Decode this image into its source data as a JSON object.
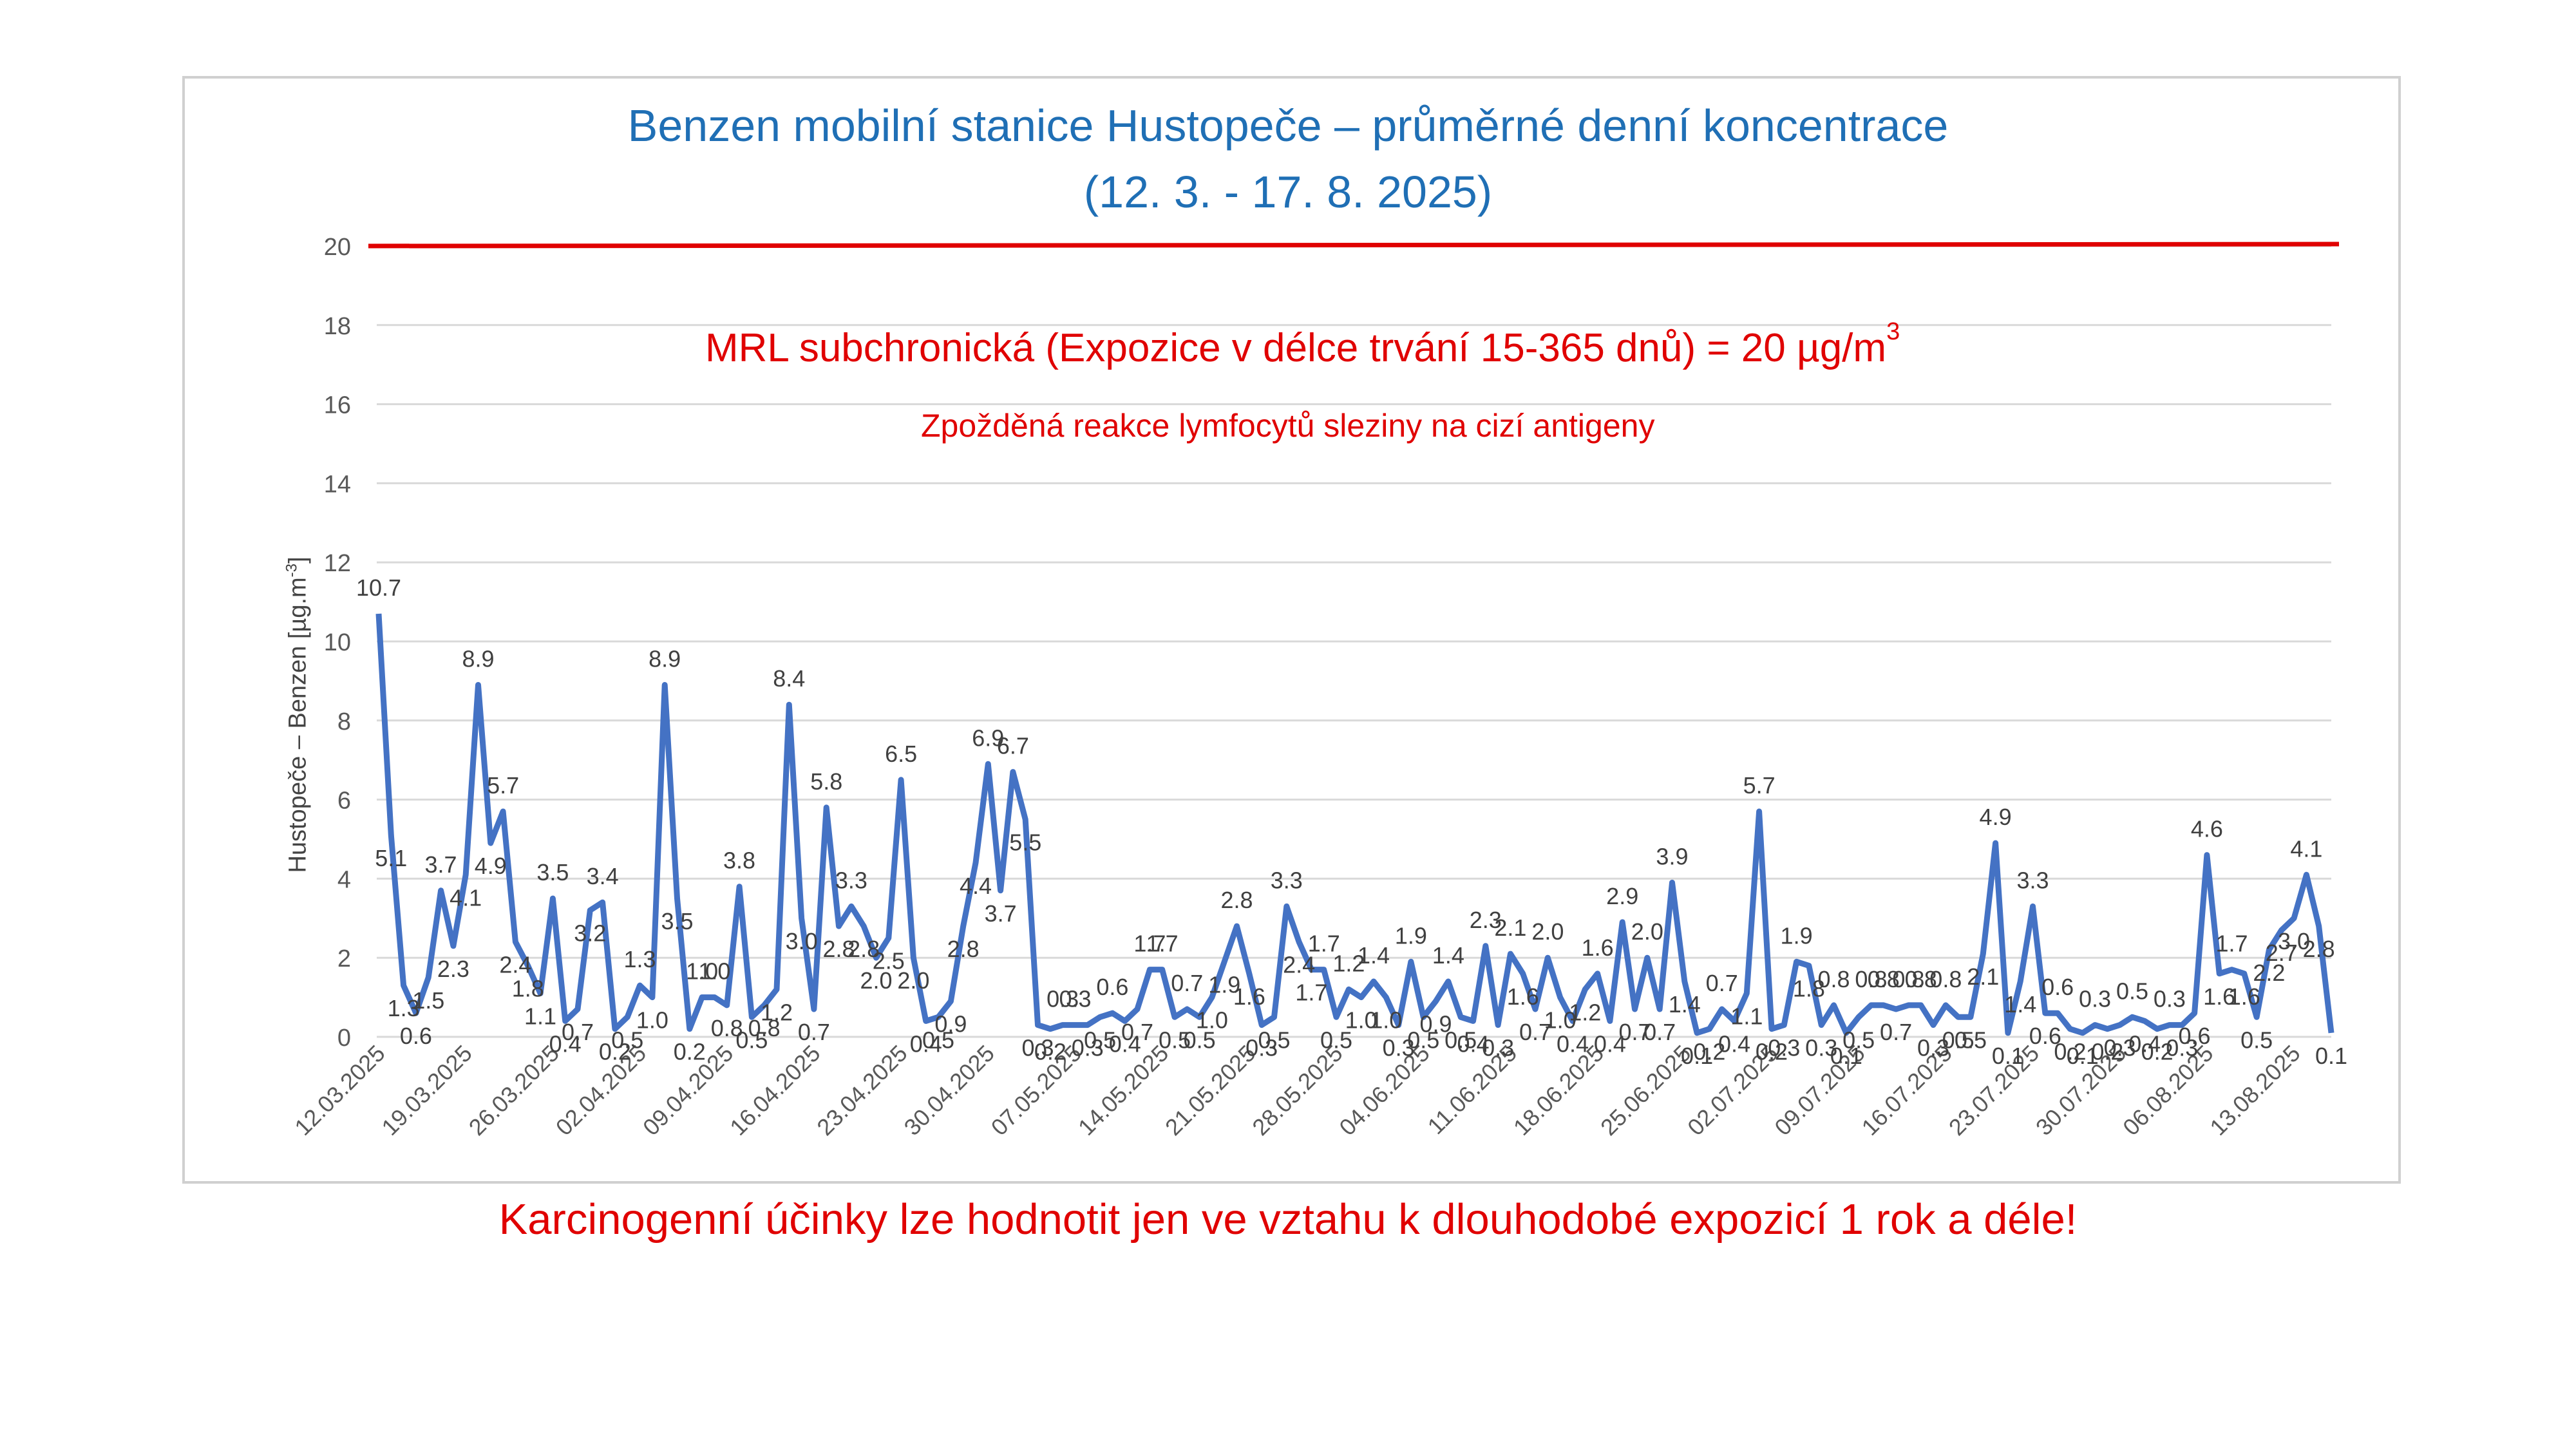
{
  "chart_data": {
    "type": "line",
    "title": "Benzen mobilní stanice Hustopeče – průměrné denní koncentrace",
    "subtitle": "(12. 3. - 17. 8. 2025)",
    "ylabel": "Hustopeče – Benzen  [µg.m-3]",
    "ylabel_main": "Hustopeče – Benzen  [µg.m",
    "ylabel_exp": "-3",
    "ylabel_close": "]",
    "ylim": [
      0,
      20
    ],
    "yticks": [
      "0",
      "2",
      "4",
      "6",
      "8",
      "10",
      "12",
      "14",
      "16",
      "18",
      "20"
    ],
    "xticks": [
      "12.03.2025",
      "19.03.2025",
      "26.03.2025",
      "02.04.2025",
      "09.04.2025",
      "16.04.2025",
      "23.04.2025",
      "30.04.2025",
      "07.05.2025",
      "14.05.2025",
      "21.05.2025",
      "28.05.2025",
      "04.06.2025",
      "11.06.2025",
      "18.06.2025",
      "25.06.2025",
      "02.07.2025",
      "09.07.2025",
      "16.07.2025",
      "23.07.2025",
      "30.07.2025",
      "06.08.2025",
      "13.08.2025"
    ],
    "grid": true,
    "series": [
      {
        "color": "#4472c4",
        "values": [
          10.7,
          5.1,
          1.3,
          0.6,
          1.5,
          3.7,
          2.3,
          4.1,
          8.9,
          4.9,
          5.7,
          2.4,
          1.8,
          1.1,
          3.5,
          0.4,
          0.7,
          3.2,
          3.4,
          0.2,
          0.5,
          1.3,
          1.0,
          8.9,
          3.5,
          0.2,
          1.0,
          1.0,
          0.8,
          3.8,
          0.5,
          0.8,
          1.2,
          8.4,
          3.0,
          0.7,
          5.8,
          2.8,
          3.3,
          2.8,
          2.0,
          2.5,
          6.5,
          2.0,
          0.4,
          0.5,
          0.9,
          2.8,
          4.4,
          6.9,
          3.7,
          6.7,
          5.5,
          0.3,
          0.2,
          0.3,
          0.3,
          0.3,
          0.5,
          0.6,
          0.4,
          0.7,
          1.7,
          1.7,
          0.5,
          0.7,
          0.5,
          1.0,
          1.9,
          2.8,
          1.6,
          0.3,
          0.5,
          3.3,
          2.4,
          1.7,
          1.7,
          0.5,
          1.2,
          1.0,
          1.4,
          1.0,
          0.3,
          1.9,
          0.5,
          0.9,
          1.4,
          0.5,
          0.4,
          2.3,
          0.3,
          2.1,
          1.6,
          0.7,
          2.0,
          1.0,
          0.4,
          1.2,
          1.6,
          0.4,
          2.9,
          0.7,
          2.0,
          0.7,
          3.9,
          1.4,
          0.1,
          0.2,
          0.7,
          0.4,
          1.1,
          5.7,
          0.2,
          0.3,
          1.9,
          1.8,
          0.3,
          0.8,
          0.1,
          0.5,
          0.8,
          0.8,
          0.7,
          0.8,
          0.8,
          0.3,
          0.8,
          0.5,
          0.5,
          2.1,
          4.9,
          0.1,
          1.4,
          3.3,
          0.6,
          0.6,
          0.2,
          0.1,
          0.3,
          0.2,
          0.3,
          0.5,
          0.4,
          0.2,
          0.3,
          0.3,
          0.6,
          4.6,
          1.6,
          1.7,
          1.6,
          0.5,
          2.2,
          2.7,
          3.0,
          4.1,
          2.8,
          0.1
        ]
      }
    ],
    "limit": {
      "value": 20,
      "color": "#e00000"
    }
  },
  "annotations": {
    "mrl_text": "MRL subchronická (Expozice v délce trvání 15-365 dnů) = 20 µg/m",
    "mrl_sup": "3",
    "sub_text": "Zpožděná reakce lymfocytů sleziny na cizí antigeny",
    "footer_text": "Karcinogenní účinky lze hodnotit jen ve vztahu k dlouhodobé expozicí 1 rok a déle!"
  }
}
